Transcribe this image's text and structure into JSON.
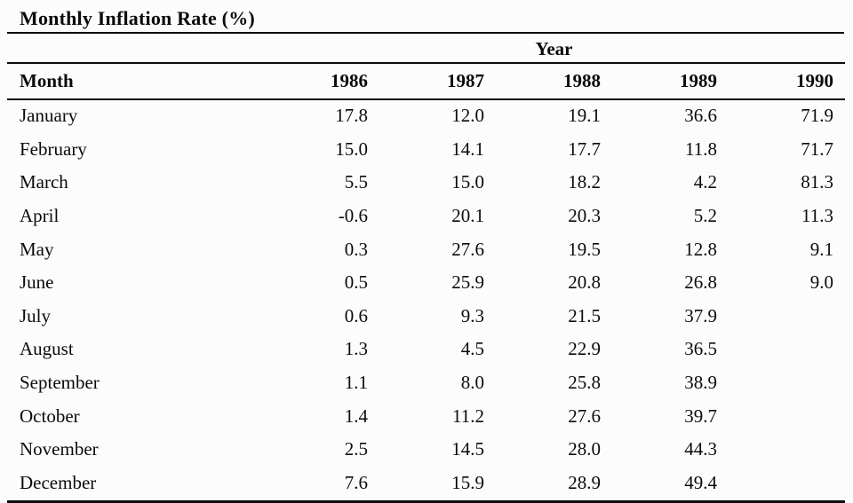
{
  "figure": {
    "title": "Monthly Inflation Rate (%)"
  },
  "table": {
    "group_header": "Year",
    "month_header": "Month",
    "year_headers": [
      "1986",
      "1987",
      "1988",
      "1989",
      "1990"
    ],
    "rows": [
      {
        "month": "January",
        "values": [
          "17.8",
          "12.0",
          "19.1",
          "36.6",
          "71.9"
        ]
      },
      {
        "month": "February",
        "values": [
          "15.0",
          "14.1",
          "17.7",
          "11.8",
          "71.7"
        ]
      },
      {
        "month": "March",
        "values": [
          "5.5",
          "15.0",
          "18.2",
          "4.2",
          "81.3"
        ]
      },
      {
        "month": "April",
        "values": [
          "-0.6",
          "20.1",
          "20.3",
          "5.2",
          "11.3"
        ]
      },
      {
        "month": "May",
        "values": [
          "0.3",
          "27.6",
          "19.5",
          "12.8",
          "9.1"
        ]
      },
      {
        "month": "June",
        "values": [
          "0.5",
          "25.9",
          "20.8",
          "26.8",
          "9.0"
        ]
      },
      {
        "month": "July",
        "values": [
          "0.6",
          "9.3",
          "21.5",
          "37.9",
          ""
        ]
      },
      {
        "month": "August",
        "values": [
          "1.3",
          "4.5",
          "22.9",
          "36.5",
          ""
        ]
      },
      {
        "month": "September",
        "values": [
          "1.1",
          "8.0",
          "25.8",
          "38.9",
          ""
        ]
      },
      {
        "month": "October",
        "values": [
          "1.4",
          "11.2",
          "27.6",
          "39.7",
          ""
        ]
      },
      {
        "month": "November",
        "values": [
          "2.5",
          "14.5",
          "28.0",
          "44.3",
          ""
        ]
      },
      {
        "month": "December",
        "values": [
          "7.6",
          "15.9",
          "28.9",
          "49.4",
          ""
        ]
      }
    ]
  },
  "colors": {
    "background": "#fcfcfc",
    "text": "#0b0b0b",
    "rule": "#0b0b0b"
  },
  "chart_data": {
    "type": "table",
    "title": "Monthly Inflation Rate (%)",
    "column_group_label": "Year",
    "columns": [
      "Month",
      "1986",
      "1987",
      "1988",
      "1989",
      "1990"
    ],
    "rows": [
      [
        "January",
        17.8,
        12.0,
        19.1,
        36.6,
        71.9
      ],
      [
        "February",
        15.0,
        14.1,
        17.7,
        11.8,
        71.7
      ],
      [
        "March",
        5.5,
        15.0,
        18.2,
        4.2,
        81.3
      ],
      [
        "April",
        -0.6,
        20.1,
        20.3,
        5.2,
        11.3
      ],
      [
        "May",
        0.3,
        27.6,
        19.5,
        12.8,
        9.1
      ],
      [
        "June",
        0.5,
        25.9,
        20.8,
        26.8,
        9.0
      ],
      [
        "July",
        0.6,
        9.3,
        21.5,
        37.9,
        null
      ],
      [
        "August",
        1.3,
        4.5,
        22.9,
        36.5,
        null
      ],
      [
        "September",
        1.1,
        8.0,
        25.8,
        38.9,
        null
      ],
      [
        "October",
        1.4,
        11.2,
        27.6,
        39.7,
        null
      ],
      [
        "November",
        2.5,
        14.5,
        28.0,
        44.3,
        null
      ],
      [
        "December",
        7.6,
        15.9,
        28.9,
        49.4,
        null
      ]
    ]
  }
}
